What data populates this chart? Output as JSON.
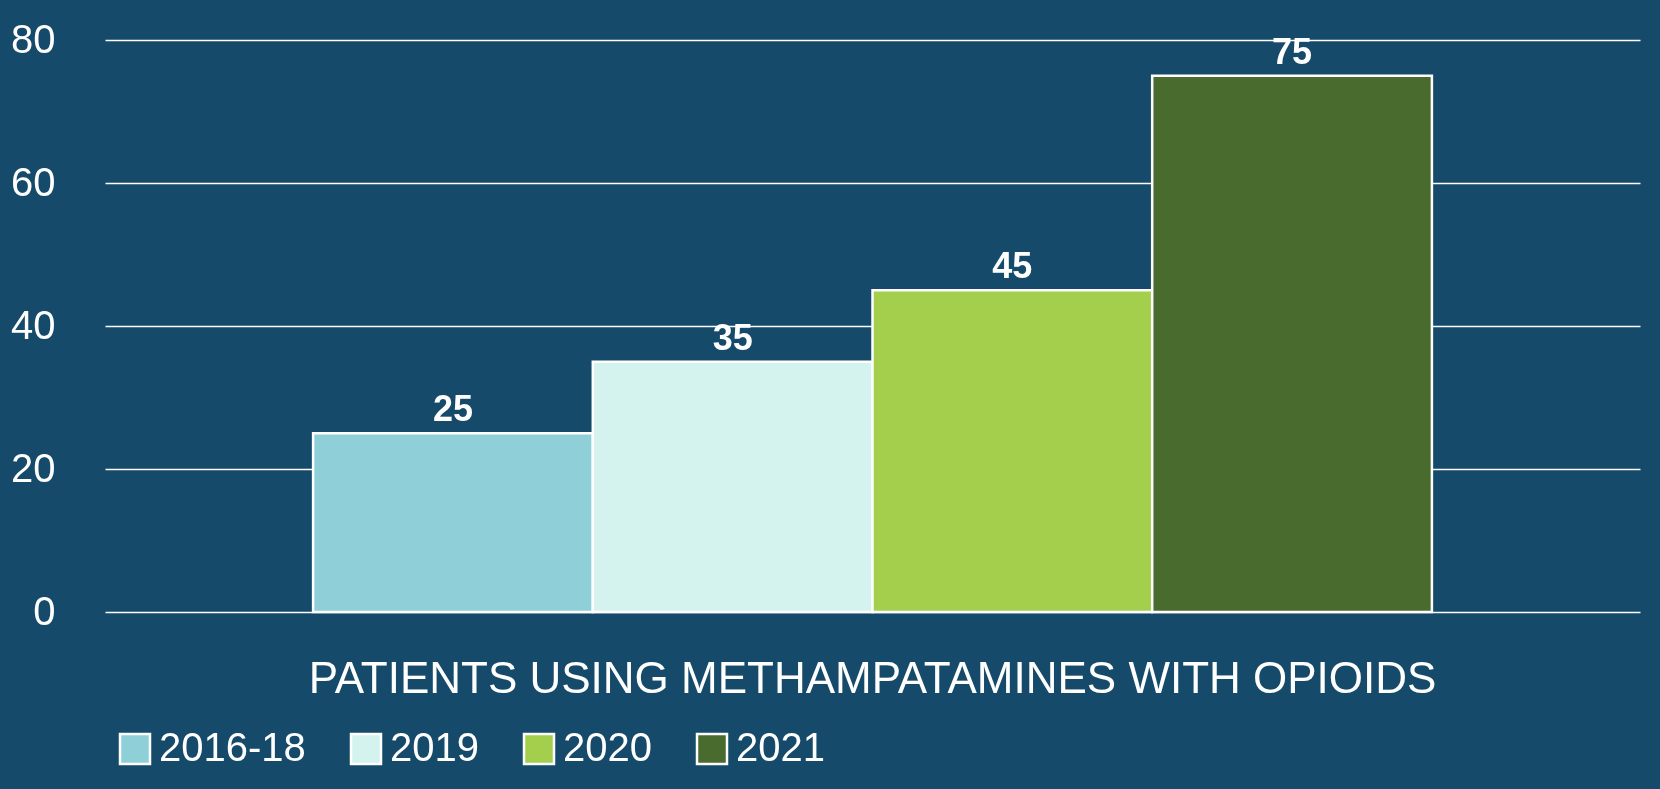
{
  "chart_data": {
    "type": "bar",
    "categories": [
      "PATIENTS USING METHAMPATAMINES WITH OPIOIDS"
    ],
    "series": [
      {
        "name": "2016-18",
        "color": "#8ecfd8",
        "values": [
          25
        ]
      },
      {
        "name": "2019",
        "color": "#d5f3ee",
        "values": [
          35
        ]
      },
      {
        "name": "2020",
        "color": "#a3cf4c",
        "values": [
          45
        ]
      },
      {
        "name": "2021",
        "color": "#4a6b2e",
        "values": [
          75
        ]
      }
    ],
    "ylim": [
      0,
      80
    ],
    "yticks": [
      0,
      20,
      40,
      60,
      80
    ],
    "grid": "y",
    "legend": "bottom",
    "data_labels": true
  }
}
